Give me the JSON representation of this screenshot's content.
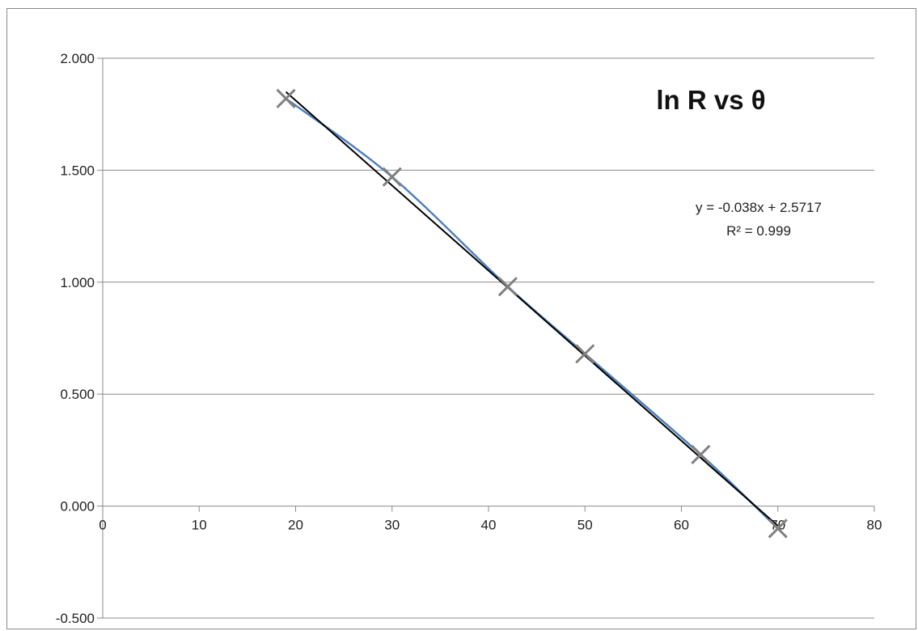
{
  "chart_data": {
    "type": "scatter",
    "title": "ln R vs θ",
    "xlabel": "",
    "ylabel": "",
    "xlim": [
      0,
      80
    ],
    "ylim": [
      -0.5,
      2.0
    ],
    "x_ticks": [
      0,
      10,
      20,
      30,
      40,
      50,
      60,
      70,
      80
    ],
    "y_ticks": [
      -0.5,
      0.0,
      0.5,
      1.0,
      1.5,
      2.0
    ],
    "x_tick_labels": [
      "0",
      "10",
      "20",
      "30",
      "40",
      "50",
      "60",
      "70",
      "80"
    ],
    "y_tick_labels": [
      "-0.500",
      "0.000",
      "0.500",
      "1.000",
      "1.500",
      "2.000"
    ],
    "grid": "horizontal",
    "legend": "none",
    "series": [
      {
        "marker": "x",
        "color": "#808080",
        "line_color": "#4f81bd",
        "x": [
          19,
          30,
          42,
          50,
          62,
          70
        ],
        "y": [
          1.82,
          1.47,
          0.98,
          0.68,
          0.23,
          -0.1
        ]
      }
    ],
    "trendline": {
      "type": "linear",
      "slope": -0.038,
      "intercept": 2.5717,
      "x_range": [
        19,
        70
      ],
      "color": "#000000",
      "equation_label": "y = -0.038x + 2.5717",
      "r2_label": "R² = 0.999"
    }
  }
}
